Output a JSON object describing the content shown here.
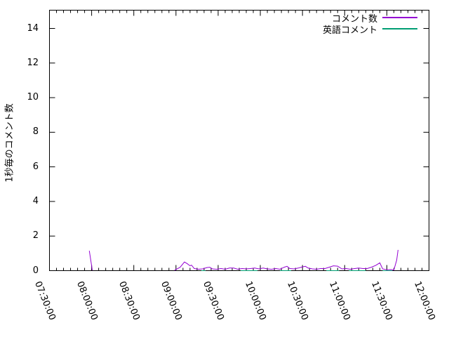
{
  "chart_data": {
    "type": "line",
    "title": "",
    "xlabel": "",
    "ylabel": "1秒毎のコメント数",
    "grid": false,
    "legend_position": "top-right-inside",
    "ylim": [
      0,
      15
    ],
    "y_ticks": [
      0,
      2,
      4,
      6,
      8,
      10,
      12,
      14
    ],
    "x_tick_labels": [
      "07:30:00",
      "08:00:00",
      "08:30:00",
      "09:00:00",
      "09:30:00",
      "10:00:00",
      "10:30:00",
      "11:00:00",
      "11:30:00",
      "12:00:00"
    ],
    "x_range_minutes": 270,
    "x_major_step_min": 30,
    "x_minor_step_min": 5,
    "series": [
      {
        "name": "コメント数",
        "color": "#9400d3",
        "segments": [
          [
            [
              "07:58:20",
              1.15
            ],
            [
              "08:00:30",
              0.02
            ]
          ],
          [
            [
              "08:59",
              0.02
            ],
            [
              "09:03",
              0.2
            ],
            [
              "09:06",
              0.5
            ],
            [
              "09:08",
              0.4
            ],
            [
              "09:10",
              0.28
            ],
            [
              "09:11",
              0.32
            ],
            [
              "09:13",
              0.12
            ],
            [
              "09:16",
              0.08
            ],
            [
              "09:19",
              0.1
            ],
            [
              "09:22",
              0.18
            ],
            [
              "09:24",
              0.2
            ],
            [
              "09:26",
              0.1
            ],
            [
              "09:29",
              0.08
            ],
            [
              "09:32",
              0.12
            ],
            [
              "09:35",
              0.08
            ],
            [
              "09:38",
              0.15
            ],
            [
              "09:41",
              0.15
            ],
            [
              "09:44",
              0.08
            ],
            [
              "09:47",
              0.12
            ],
            [
              "09:50",
              0.1
            ],
            [
              "09:53",
              0.12
            ],
            [
              "09:56",
              0.15
            ],
            [
              "09:59",
              0.1
            ],
            [
              "10:02",
              0.15
            ],
            [
              "10:05",
              0.1
            ],
            [
              "10:08",
              0.08
            ],
            [
              "10:11",
              0.12
            ],
            [
              "10:14",
              0.08
            ],
            [
              "10:17",
              0.2
            ],
            [
              "10:19",
              0.25
            ],
            [
              "10:21",
              0.12
            ],
            [
              "10:24",
              0.1
            ],
            [
              "10:27",
              0.15
            ],
            [
              "10:30",
              0.22
            ],
            [
              "10:32",
              0.25
            ],
            [
              "10:34",
              0.15
            ],
            [
              "10:37",
              0.1
            ],
            [
              "10:40",
              0.08
            ],
            [
              "10:43",
              0.12
            ],
            [
              "10:46",
              0.12
            ],
            [
              "10:49",
              0.2
            ],
            [
              "10:52",
              0.28
            ],
            [
              "10:55",
              0.26
            ],
            [
              "10:58",
              0.1
            ],
            [
              "11:01",
              0.12
            ],
            [
              "11:04",
              0.08
            ],
            [
              "11:07",
              0.12
            ],
            [
              "11:10",
              0.15
            ],
            [
              "11:13",
              0.12
            ],
            [
              "11:16",
              0.12
            ],
            [
              "11:19",
              0.2
            ],
            [
              "11:22",
              0.3
            ],
            [
              "11:25",
              0.45
            ],
            [
              "11:27",
              0.1
            ],
            [
              "11:30",
              0.05
            ],
            [
              "11:33",
              0.06
            ],
            [
              "11:35",
              0.04
            ],
            [
              "11:37",
              0.6
            ],
            [
              "11:38",
              1.2
            ]
          ]
        ]
      },
      {
        "name": "英語コメント",
        "color": "#009e73",
        "segments": [
          [
            [
              "09:18",
              0
            ],
            [
              "09:21",
              0
            ]
          ],
          [
            [
              "09:46",
              0
            ],
            [
              "09:58",
              0
            ]
          ],
          [
            [
              "10:14",
              0
            ],
            [
              "10:22",
              0
            ]
          ],
          [
            [
              "10:47",
              0
            ],
            [
              "10:56",
              0
            ]
          ],
          [
            [
              "11:03",
              0
            ],
            [
              "11:15",
              0
            ]
          ],
          [
            [
              "11:27",
              0
            ],
            [
              "11:34",
              0
            ]
          ]
        ]
      }
    ]
  }
}
